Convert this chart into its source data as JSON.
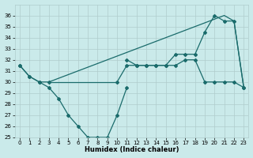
{
  "xlabel": "Humidex (Indice chaleur)",
  "xlim": [
    -0.5,
    23.5
  ],
  "ylim": [
    25,
    37
  ],
  "yticks": [
    25,
    26,
    27,
    28,
    29,
    30,
    31,
    32,
    33,
    34,
    35,
    36
  ],
  "xticks": [
    0,
    1,
    2,
    3,
    4,
    5,
    6,
    7,
    8,
    9,
    10,
    11,
    12,
    13,
    14,
    15,
    16,
    17,
    18,
    19,
    20,
    21,
    22,
    23
  ],
  "bg_color": "#caeaea",
  "grid_color": "#b0cccc",
  "line_color": "#1a6b6b",
  "curve_low": {
    "x": [
      0,
      1,
      2,
      3,
      4,
      5,
      6,
      7,
      8,
      9,
      10,
      11
    ],
    "y": [
      31.5,
      30.5,
      30.0,
      29.5,
      28.5,
      27.0,
      26.0,
      25.0,
      25.0,
      25.0,
      27.0,
      29.5
    ]
  },
  "curve_flat": {
    "x": [
      0,
      1,
      2,
      3,
      10,
      11,
      12,
      13,
      14,
      15,
      16,
      17,
      18,
      19,
      20,
      21,
      22,
      23
    ],
    "y": [
      31.5,
      30.5,
      30.0,
      30.0,
      30.0,
      31.5,
      31.5,
      31.5,
      31.5,
      31.5,
      31.5,
      32.0,
      32.0,
      30.0,
      30.0,
      30.0,
      30.0,
      29.5
    ]
  },
  "curve_upper": {
    "x": [
      11,
      12,
      13,
      14,
      15,
      16,
      17,
      18,
      19,
      20,
      21,
      22,
      23
    ],
    "y": [
      32.0,
      31.5,
      31.5,
      31.5,
      31.5,
      32.5,
      32.5,
      32.5,
      34.5,
      36.0,
      35.5,
      35.5,
      29.5
    ]
  },
  "curve_diagonal": {
    "x": [
      3,
      21,
      22,
      23
    ],
    "y": [
      30.0,
      36.0,
      35.5,
      29.5
    ]
  }
}
